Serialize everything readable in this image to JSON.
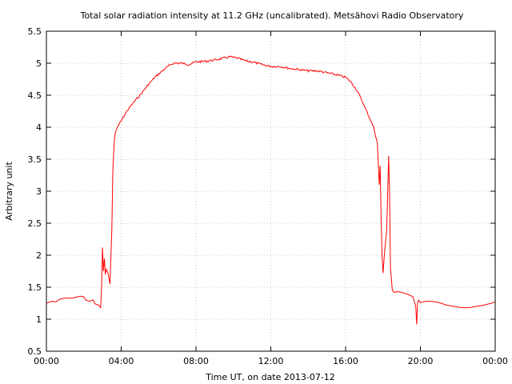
{
  "chart_data": {
    "type": "line",
    "title": "Total solar radiation intensity at 11.2 GHz (uncalibrated). Metsähovi Radio Observatory",
    "xlabel": "Time UT, on date 2013-07-12",
    "ylabel": "Arbitrary unit",
    "xlim": [
      0,
      24
    ],
    "ylim": [
      0.5,
      5.5
    ],
    "x_ticks": [
      {
        "value": 0,
        "label": "00:00"
      },
      {
        "value": 4,
        "label": "04:00"
      },
      {
        "value": 8,
        "label": "08:00"
      },
      {
        "value": 12,
        "label": "12:00"
      },
      {
        "value": 16,
        "label": "16:00"
      },
      {
        "value": 20,
        "label": "20:00"
      },
      {
        "value": 24,
        "label": "00:00"
      }
    ],
    "y_ticks": [
      {
        "value": 0.5,
        "label": "0.5"
      },
      {
        "value": 1,
        "label": "1"
      },
      {
        "value": 1.5,
        "label": "1.5"
      },
      {
        "value": 2,
        "label": "2"
      },
      {
        "value": 2.5,
        "label": "2.5"
      },
      {
        "value": 3,
        "label": "3"
      },
      {
        "value": 3.5,
        "label": "3.5"
      },
      {
        "value": 4,
        "label": "4"
      },
      {
        "value": 4.5,
        "label": "4.5"
      },
      {
        "value": 5,
        "label": "5"
      },
      {
        "value": 5.5,
        "label": "5.5"
      }
    ],
    "grid": true,
    "series": [
      {
        "color": "#ff0000",
        "x": [
          0,
          0.3,
          0.5,
          0.7,
          1.0,
          1.4,
          1.8,
          2.0,
          2.1,
          2.3,
          2.5,
          2.6,
          2.8,
          2.9,
          2.95,
          3.0,
          3.05,
          3.1,
          3.15,
          3.2,
          3.3,
          3.4,
          3.5,
          3.55,
          3.6,
          3.65,
          3.7,
          3.8,
          4.0,
          4.3,
          4.7,
          5.0,
          5.4,
          5.8,
          6.2,
          6.5,
          6.8,
          7.2,
          7.6,
          8.0,
          8.5,
          9.0,
          9.5,
          9.8,
          10.2,
          10.6,
          11.0,
          11.5,
          12.0,
          12.5,
          13.0,
          13.5,
          14.0,
          14.5,
          15.0,
          15.5,
          16.0,
          16.3,
          16.6,
          16.9,
          17.2,
          17.5,
          17.7,
          17.8,
          17.85,
          17.9,
          17.95,
          18.0,
          18.1,
          18.2,
          18.3,
          18.35,
          18.4,
          18.5,
          18.6,
          18.8,
          19.0,
          19.2,
          19.4,
          19.6,
          19.75,
          19.8,
          19.85,
          19.9,
          20.0,
          20.3,
          20.6,
          21.0,
          21.4,
          21.8,
          22.2,
          22.6,
          23.0,
          23.4,
          23.8,
          24.0
        ],
        "y": [
          1.25,
          1.28,
          1.27,
          1.31,
          1.33,
          1.33,
          1.36,
          1.35,
          1.3,
          1.28,
          1.3,
          1.24,
          1.22,
          1.18,
          1.5,
          2.12,
          1.75,
          1.95,
          1.7,
          1.78,
          1.72,
          1.55,
          2.4,
          3.3,
          3.6,
          3.85,
          3.93,
          4.0,
          4.1,
          4.25,
          4.4,
          4.5,
          4.65,
          4.78,
          4.88,
          4.95,
          5.0,
          5.0,
          4.98,
          5.02,
          5.03,
          5.05,
          5.08,
          5.1,
          5.08,
          5.04,
          5.02,
          4.98,
          4.95,
          4.95,
          4.92,
          4.9,
          4.88,
          4.88,
          4.85,
          4.82,
          4.78,
          4.7,
          4.58,
          4.4,
          4.2,
          4.0,
          3.75,
          3.1,
          3.4,
          2.6,
          2.0,
          1.72,
          2.1,
          2.4,
          3.55,
          3.0,
          1.8,
          1.45,
          1.42,
          1.43,
          1.42,
          1.4,
          1.38,
          1.35,
          1.2,
          0.92,
          1.25,
          1.3,
          1.26,
          1.28,
          1.28,
          1.26,
          1.22,
          1.2,
          1.18,
          1.18,
          1.2,
          1.22,
          1.25,
          1.27
        ]
      }
    ]
  }
}
